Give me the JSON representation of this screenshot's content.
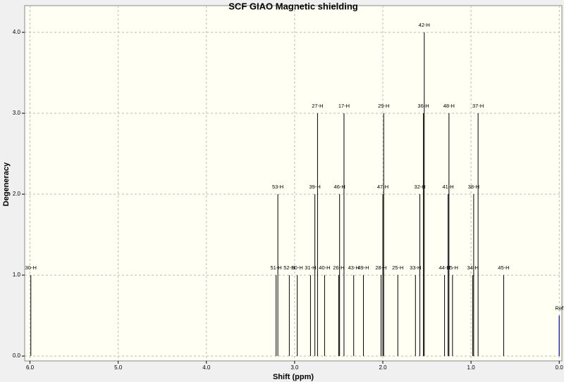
{
  "chart_data": {
    "type": "stick",
    "title": "SCF GIAO Magnetic shielding",
    "xlabel": "Shift (ppm)",
    "ylabel": "Degeneracy",
    "xlim": [
      6.06,
      -0.03
    ],
    "ylim": [
      -0.06,
      4.33
    ],
    "xticks": [
      {
        "value": 6,
        "label": "6.0"
      },
      {
        "value": 5,
        "label": "5.0"
      },
      {
        "value": 4,
        "label": "4.0"
      },
      {
        "value": 3,
        "label": "3.0"
      },
      {
        "value": 2,
        "label": "2.0"
      },
      {
        "value": 1,
        "label": "1.0"
      },
      {
        "value": 0,
        "label": "0.0"
      }
    ],
    "yticks": [
      {
        "value": 0,
        "label": "0.0"
      },
      {
        "value": 1,
        "label": "1.0"
      },
      {
        "value": 2,
        "label": "2.0"
      },
      {
        "value": 3,
        "label": "3.0"
      },
      {
        "value": 4,
        "label": "4.0"
      }
    ],
    "grid": true,
    "color": "#000000",
    "peaks": {
      "labels": [
        "30-H",
        "51-H",
        "52-H",
        "50-H",
        "31-H",
        "40-H",
        "26-H",
        "43-H",
        "49-H",
        "28-H",
        "25-H",
        "33-H",
        "44-H",
        "35-H",
        "34-H",
        "45-H",
        "53-H",
        "39-H",
        "46-H",
        "47-H",
        "32-H",
        "41-H",
        "38-H",
        "27-H",
        "17-H",
        "29-H",
        "36-H",
        "48-H",
        "37-H",
        "42-H"
      ],
      "x": [
        5.99,
        3.21,
        3.06,
        2.97,
        2.82,
        2.66,
        2.5,
        2.33,
        2.22,
        2.02,
        1.83,
        1.63,
        1.3,
        1.21,
        0.98,
        0.63,
        3.19,
        2.77,
        2.49,
        2.0,
        1.58,
        1.26,
        0.97,
        2.74,
        2.44,
        1.99,
        1.54,
        1.25,
        0.92,
        1.53
      ],
      "values": [
        1,
        1,
        1,
        1,
        1,
        1,
        1,
        1,
        1,
        1,
        1,
        1,
        1,
        1,
        1,
        1,
        2,
        2,
        2,
        2,
        2,
        2,
        2,
        3,
        3,
        3,
        3,
        3,
        3,
        4
      ]
    },
    "reference": {
      "label": "Ref",
      "x": 0,
      "value": 0.5,
      "color": "#3030c8"
    }
  }
}
